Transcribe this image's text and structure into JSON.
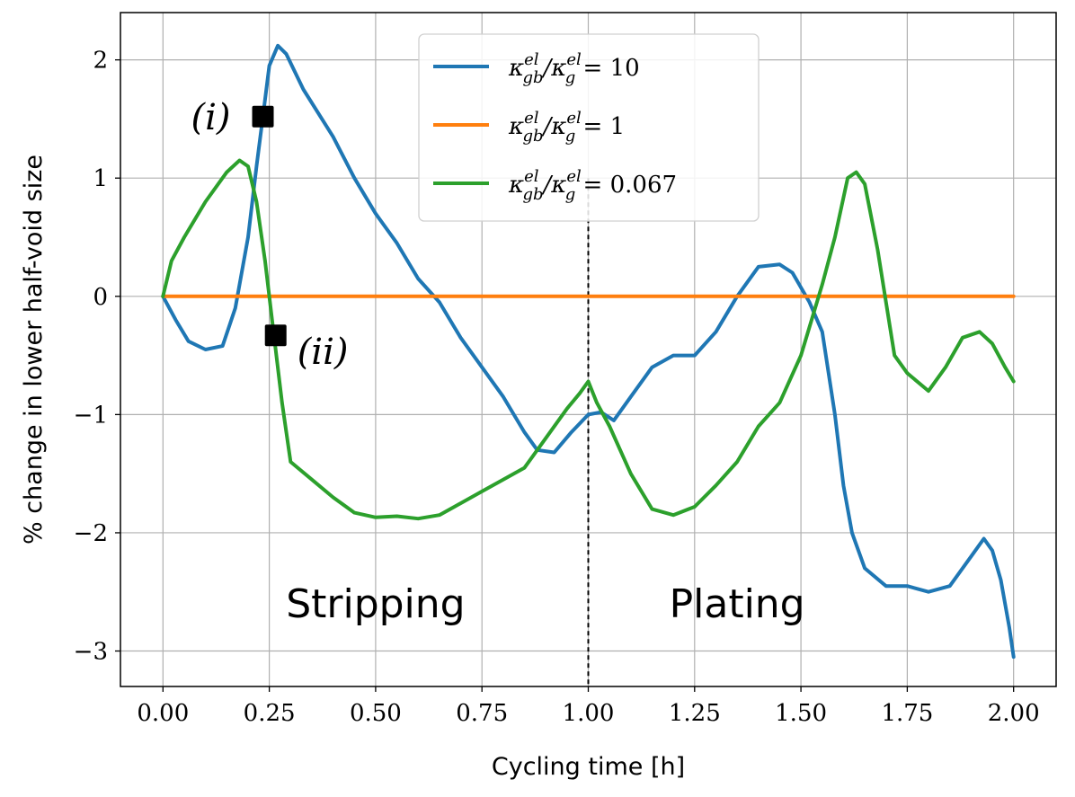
{
  "chart_data": {
    "type": "line",
    "xlabel": "Cycling time [h]",
    "ylabel": "% change in lower half-void size",
    "xlim": [
      -0.1,
      2.1
    ],
    "ylim": [
      -3.3,
      2.4
    ],
    "grid": true,
    "legend_position": "top-center",
    "x_ticks": [
      0.0,
      0.25,
      0.5,
      0.75,
      1.0,
      1.25,
      1.5,
      1.75,
      2.0
    ],
    "x_tick_labels": [
      "0.00",
      "0.25",
      "0.50",
      "0.75",
      "1.00",
      "1.25",
      "1.50",
      "1.75",
      "2.00"
    ],
    "y_ticks": [
      2,
      1,
      0,
      -1,
      -2,
      -3
    ],
    "y_tick_labels": [
      "2",
      "1",
      "0",
      "−1",
      "−2",
      "−3"
    ],
    "vline": {
      "x": 1.0,
      "style": "dashed",
      "color": "#000000"
    },
    "regions": [
      {
        "label": "Stripping",
        "x": 0.5,
        "y": -2.6
      },
      {
        "label": "Plating",
        "x": 1.35,
        "y": -2.6
      }
    ],
    "annotations": [
      {
        "label": "(i)",
        "x": 0.235,
        "y": 1.52
      },
      {
        "label": "(ii)",
        "x": 0.265,
        "y": -0.33
      }
    ],
    "series": [
      {
        "name": "κ_gb^el/κ_g^el = 10",
        "legend_label": "κ",
        "legend_sub": "gb",
        "legend_sup": "el",
        "legend_mid": "/κ",
        "legend_sub2": "g",
        "legend_sup2": "el",
        "legend_value": " = 10",
        "color": "#1f77b4",
        "points": [
          [
            0.0,
            0.0
          ],
          [
            0.03,
            -0.2
          ],
          [
            0.06,
            -0.38
          ],
          [
            0.1,
            -0.45
          ],
          [
            0.14,
            -0.42
          ],
          [
            0.17,
            -0.1
          ],
          [
            0.2,
            0.5
          ],
          [
            0.22,
            1.1
          ],
          [
            0.235,
            1.52
          ],
          [
            0.25,
            1.95
          ],
          [
            0.27,
            2.12
          ],
          [
            0.29,
            2.05
          ],
          [
            0.33,
            1.75
          ],
          [
            0.4,
            1.35
          ],
          [
            0.45,
            1.0
          ],
          [
            0.5,
            0.7
          ],
          [
            0.55,
            0.45
          ],
          [
            0.6,
            0.15
          ],
          [
            0.65,
            -0.05
          ],
          [
            0.7,
            -0.35
          ],
          [
            0.75,
            -0.6
          ],
          [
            0.8,
            -0.85
          ],
          [
            0.85,
            -1.15
          ],
          [
            0.88,
            -1.3
          ],
          [
            0.92,
            -1.32
          ],
          [
            0.96,
            -1.15
          ],
          [
            1.0,
            -1.0
          ],
          [
            1.03,
            -0.98
          ],
          [
            1.06,
            -1.05
          ],
          [
            1.1,
            -0.85
          ],
          [
            1.15,
            -0.6
          ],
          [
            1.2,
            -0.5
          ],
          [
            1.25,
            -0.5
          ],
          [
            1.3,
            -0.3
          ],
          [
            1.35,
            0.0
          ],
          [
            1.4,
            0.25
          ],
          [
            1.45,
            0.27
          ],
          [
            1.48,
            0.2
          ],
          [
            1.52,
            -0.05
          ],
          [
            1.55,
            -0.3
          ],
          [
            1.58,
            -1.0
          ],
          [
            1.6,
            -1.6
          ],
          [
            1.62,
            -2.0
          ],
          [
            1.65,
            -2.3
          ],
          [
            1.7,
            -2.45
          ],
          [
            1.75,
            -2.45
          ],
          [
            1.8,
            -2.5
          ],
          [
            1.85,
            -2.45
          ],
          [
            1.9,
            -2.2
          ],
          [
            1.93,
            -2.05
          ],
          [
            1.95,
            -2.15
          ],
          [
            1.97,
            -2.4
          ],
          [
            1.99,
            -2.8
          ],
          [
            2.0,
            -3.05
          ]
        ]
      },
      {
        "name": "κ_gb^el/κ_g^el = 1",
        "legend_label": "κ",
        "legend_sub": "gb",
        "legend_sup": "el",
        "legend_mid": "/κ",
        "legend_sub2": "g",
        "legend_sup2": "el",
        "legend_value": " = 1",
        "color": "#ff7f0e",
        "points": [
          [
            0.0,
            0.0
          ],
          [
            2.0,
            0.0
          ]
        ]
      },
      {
        "name": "κ_gb^el/κ_g^el = 0.067",
        "legend_label": "κ",
        "legend_sub": "gb",
        "legend_sup": "el",
        "legend_mid": "/κ",
        "legend_sub2": "g",
        "legend_sup2": "el",
        "legend_value": " = 0.067",
        "color": "#2ca02c",
        "points": [
          [
            0.0,
            0.0
          ],
          [
            0.02,
            0.3
          ],
          [
            0.05,
            0.5
          ],
          [
            0.1,
            0.8
          ],
          [
            0.15,
            1.05
          ],
          [
            0.18,
            1.15
          ],
          [
            0.2,
            1.1
          ],
          [
            0.22,
            0.8
          ],
          [
            0.24,
            0.3
          ],
          [
            0.26,
            -0.3
          ],
          [
            0.28,
            -0.9
          ],
          [
            0.3,
            -1.4
          ],
          [
            0.35,
            -1.55
          ],
          [
            0.4,
            -1.7
          ],
          [
            0.45,
            -1.83
          ],
          [
            0.5,
            -1.87
          ],
          [
            0.55,
            -1.86
          ],
          [
            0.6,
            -1.88
          ],
          [
            0.65,
            -1.85
          ],
          [
            0.7,
            -1.75
          ],
          [
            0.75,
            -1.65
          ],
          [
            0.8,
            -1.55
          ],
          [
            0.85,
            -1.45
          ],
          [
            0.9,
            -1.2
          ],
          [
            0.95,
            -0.95
          ],
          [
            0.98,
            -0.82
          ],
          [
            1.0,
            -0.72
          ],
          [
            1.02,
            -0.9
          ],
          [
            1.05,
            -1.1
          ],
          [
            1.1,
            -1.5
          ],
          [
            1.15,
            -1.8
          ],
          [
            1.2,
            -1.85
          ],
          [
            1.25,
            -1.78
          ],
          [
            1.3,
            -1.6
          ],
          [
            1.35,
            -1.4
          ],
          [
            1.4,
            -1.1
          ],
          [
            1.45,
            -0.9
          ],
          [
            1.5,
            -0.5
          ],
          [
            1.55,
            0.1
          ],
          [
            1.58,
            0.5
          ],
          [
            1.61,
            1.0
          ],
          [
            1.63,
            1.05
          ],
          [
            1.65,
            0.95
          ],
          [
            1.68,
            0.4
          ],
          [
            1.72,
            -0.5
          ],
          [
            1.75,
            -0.65
          ],
          [
            1.8,
            -0.8
          ],
          [
            1.84,
            -0.6
          ],
          [
            1.88,
            -0.35
          ],
          [
            1.92,
            -0.3
          ],
          [
            1.95,
            -0.4
          ],
          [
            1.98,
            -0.6
          ],
          [
            2.0,
            -0.72
          ]
        ]
      }
    ]
  }
}
